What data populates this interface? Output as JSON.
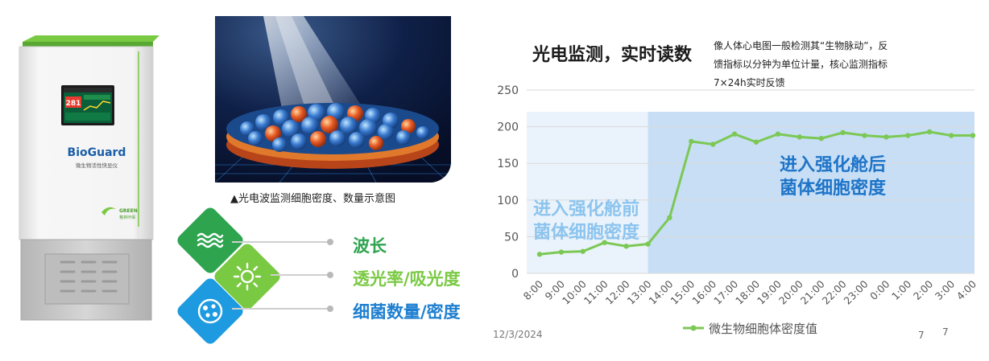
{
  "device": {
    "brand": "BioGuard",
    "subtitle": "微生物活性快显仪",
    "screen_reading": "281",
    "logo_text": "GREEN",
    "logo_subtext": "格林环保",
    "colors": {
      "accent": "#6cc24a",
      "body": "#f2f2f2",
      "base": "#c9c9c9"
    }
  },
  "photo": {
    "caption": "▲光电波监测细胞密度、数量示意图"
  },
  "features": [
    {
      "label": "波长",
      "icon": "waves-icon",
      "color": "#2ea44f",
      "label_color": "#2ea44f"
    },
    {
      "label": "透光率/吸光度",
      "icon": "sun-icon",
      "color": "#7ac943",
      "label_color": "#7ac943"
    },
    {
      "label": "细菌数量/密度",
      "icon": "cells-icon",
      "color": "#1e9be0",
      "label_color": "#1e7fd0"
    }
  ],
  "chart_header": {
    "title": "光电监测，实时读数",
    "description_lines": [
      "像人体心电图一般检测其“生物脉动”，反",
      "馈指标以分钟为单位计量，核心监测指标",
      "7×24h实时反馈"
    ]
  },
  "footer": {
    "date": "12/3/2024",
    "page_a": "7",
    "page_b": "7"
  },
  "chart_data": {
    "type": "line",
    "categories": [
      "8:00",
      "9:00",
      "10:00",
      "11:00",
      "12:00",
      "13:00",
      "14:00",
      "15:00",
      "16:00",
      "17:00",
      "18:00",
      "19:00",
      "20:00",
      "21:00",
      "22:00",
      "23:00",
      "0:00",
      "1:00",
      "2:00",
      "3:00",
      "4:00"
    ],
    "series": [
      {
        "name": "微生物细胞体密度值",
        "values": [
          26,
          29,
          30,
          42,
          37,
          40,
          76,
          180,
          176,
          190,
          179,
          190,
          186,
          184,
          192,
          188,
          186,
          188,
          193,
          188,
          188
        ],
        "color": "#7cc855"
      }
    ],
    "ylim": [
      0,
      250
    ],
    "yticks": [
      0,
      50,
      100,
      150,
      200,
      250
    ],
    "grid": true,
    "legend_position": "bottom",
    "regions": [
      {
        "label_lines": [
          "进入强化舱前",
          "菌体细胞密度"
        ],
        "from": "8:00",
        "to": "13:00",
        "color": "#eaf3fc",
        "label_color": "#8cc4ee"
      },
      {
        "label_lines": [
          "进入强化舱后",
          "菌体细胞密度"
        ],
        "from": "13:00",
        "to": "4:00",
        "color": "#c7def5",
        "label_color": "#1e74c8"
      }
    ]
  }
}
